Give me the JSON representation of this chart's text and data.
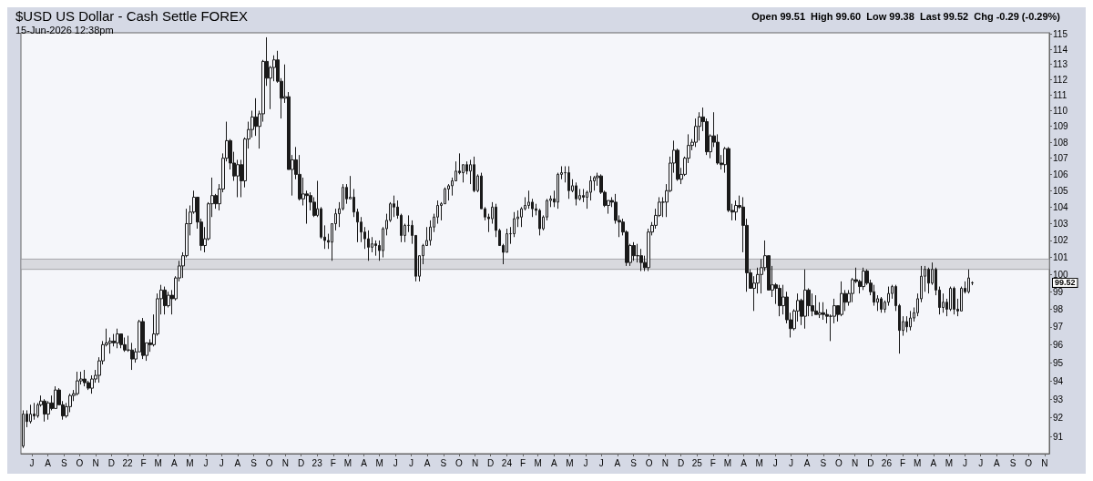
{
  "chart_data": {
    "type": "candlestick",
    "title": "$USD US Dollar - Cash Settle FOREX",
    "subtitle": "15-Jun-2026 12:38pm",
    "annotations": [
      "Open 99.51  High 99.60  Low 99.38  Last 99.52  Chg -0.29 (-0.29%)",
      "99.52"
    ],
    "log": true,
    "color": "#1a1a1a",
    "ylim": [
      90.1,
      115.1
    ],
    "yticks": [
      91,
      92,
      93,
      94,
      95,
      96,
      97,
      98,
      99,
      100,
      101,
      102,
      103,
      104,
      105,
      106,
      107,
      108,
      109,
      110,
      111,
      112,
      113,
      114,
      115
    ],
    "xlim": [
      "2021-06-10",
      "2026-11-10"
    ],
    "xticks": [
      {
        "value": "2021-07-01",
        "label": "J"
      },
      {
        "value": "2021-08-01",
        "label": "A"
      },
      {
        "value": "2021-09-01",
        "label": "S"
      },
      {
        "value": "2021-10-01",
        "label": "O"
      },
      {
        "value": "2021-11-01",
        "label": "N"
      },
      {
        "value": "2021-12-01",
        "label": "D"
      },
      {
        "value": "2022-01-01",
        "label": "22"
      },
      {
        "value": "2022-02-01",
        "label": "F"
      },
      {
        "value": "2022-03-01",
        "label": "M"
      },
      {
        "value": "2022-04-01",
        "label": "A"
      },
      {
        "value": "2022-05-01",
        "label": "M"
      },
      {
        "value": "2022-06-01",
        "label": "J"
      },
      {
        "value": "2022-07-01",
        "label": "J"
      },
      {
        "value": "2022-08-01",
        "label": "A"
      },
      {
        "value": "2022-09-01",
        "label": "S"
      },
      {
        "value": "2022-10-01",
        "label": "O"
      },
      {
        "value": "2022-11-01",
        "label": "N"
      },
      {
        "value": "2022-12-01",
        "label": "D"
      },
      {
        "value": "2023-01-01",
        "label": "23"
      },
      {
        "value": "2023-02-01",
        "label": "F"
      },
      {
        "value": "2023-03-01",
        "label": "M"
      },
      {
        "value": "2023-04-01",
        "label": "A"
      },
      {
        "value": "2023-05-01",
        "label": "M"
      },
      {
        "value": "2023-06-01",
        "label": "J"
      },
      {
        "value": "2023-07-01",
        "label": "J"
      },
      {
        "value": "2023-08-01",
        "label": "A"
      },
      {
        "value": "2023-09-01",
        "label": "S"
      },
      {
        "value": "2023-10-01",
        "label": "O"
      },
      {
        "value": "2023-11-01",
        "label": "N"
      },
      {
        "value": "2023-12-01",
        "label": "D"
      },
      {
        "value": "2024-01-01",
        "label": "24"
      },
      {
        "value": "2024-02-01",
        "label": "F"
      },
      {
        "value": "2024-03-01",
        "label": "M"
      },
      {
        "value": "2024-04-01",
        "label": "A"
      },
      {
        "value": "2024-05-01",
        "label": "M"
      },
      {
        "value": "2024-06-01",
        "label": "J"
      },
      {
        "value": "2024-07-01",
        "label": "J"
      },
      {
        "value": "2024-08-01",
        "label": "A"
      },
      {
        "value": "2024-09-01",
        "label": "S"
      },
      {
        "value": "2024-10-01",
        "label": "O"
      },
      {
        "value": "2024-11-01",
        "label": "N"
      },
      {
        "value": "2024-12-01",
        "label": "D"
      },
      {
        "value": "2025-01-01",
        "label": "25"
      },
      {
        "value": "2025-02-01",
        "label": "F"
      },
      {
        "value": "2025-03-01",
        "label": "M"
      },
      {
        "value": "2025-04-01",
        "label": "A"
      },
      {
        "value": "2025-05-01",
        "label": "M"
      },
      {
        "value": "2025-06-01",
        "label": "J"
      },
      {
        "value": "2025-07-01",
        "label": "J"
      },
      {
        "value": "2025-08-01",
        "label": "A"
      },
      {
        "value": "2025-09-01",
        "label": "S"
      },
      {
        "value": "2025-10-01",
        "label": "O"
      },
      {
        "value": "2025-11-01",
        "label": "N"
      },
      {
        "value": "2025-12-01",
        "label": "D"
      },
      {
        "value": "2026-01-01",
        "label": "26"
      },
      {
        "value": "2026-02-01",
        "label": "F"
      },
      {
        "value": "2026-03-01",
        "label": "M"
      },
      {
        "value": "2026-04-01",
        "label": "A"
      },
      {
        "value": "2026-05-01",
        "label": "M"
      },
      {
        "value": "2026-06-01",
        "label": "J"
      },
      {
        "value": "2026-07-01",
        "label": "J"
      },
      {
        "value": "2026-08-01",
        "label": "A"
      },
      {
        "value": "2026-09-01",
        "label": "S"
      },
      {
        "value": "2026-10-01",
        "label": "O"
      },
      {
        "value": "2026-11-01",
        "label": "N"
      }
    ],
    "bands": [
      {
        "axis": "y",
        "from": 100.3,
        "to": 100.9,
        "color": "#d2d3d8"
      }
    ],
    "x": [
      "2021-06-14",
      "2021-06-21",
      "2021-06-28",
      "2021-07-05",
      "2021-07-12",
      "2021-07-19",
      "2021-07-26",
      "2021-08-02",
      "2021-08-09",
      "2021-08-16",
      "2021-08-23",
      "2021-08-30",
      "2021-09-06",
      "2021-09-13",
      "2021-09-20",
      "2021-09-27",
      "2021-10-04",
      "2021-10-11",
      "2021-10-18",
      "2021-10-25",
      "2021-11-01",
      "2021-11-08",
      "2021-11-15",
      "2021-11-22",
      "2021-11-29",
      "2021-12-06",
      "2021-12-13",
      "2021-12-20",
      "2021-12-27",
      "2022-01-03",
      "2022-01-10",
      "2022-01-17",
      "2022-01-24",
      "2022-01-31",
      "2022-02-07",
      "2022-02-14",
      "2022-02-21",
      "2022-02-28",
      "2022-03-07",
      "2022-03-14",
      "2022-03-21",
      "2022-03-28",
      "2022-04-04",
      "2022-04-11",
      "2022-04-18",
      "2022-04-25",
      "2022-05-02",
      "2022-05-09",
      "2022-05-16",
      "2022-05-23",
      "2022-05-30",
      "2022-06-06",
      "2022-06-13",
      "2022-06-20",
      "2022-06-27",
      "2022-07-04",
      "2022-07-11",
      "2022-07-18",
      "2022-07-25",
      "2022-08-01",
      "2022-08-08",
      "2022-08-15",
      "2022-08-22",
      "2022-08-29",
      "2022-09-05",
      "2022-09-12",
      "2022-09-19",
      "2022-09-26",
      "2022-10-03",
      "2022-10-10",
      "2022-10-17",
      "2022-10-24",
      "2022-10-31",
      "2022-11-07",
      "2022-11-14",
      "2022-11-21",
      "2022-11-28",
      "2022-12-05",
      "2022-12-12",
      "2022-12-19",
      "2022-12-26",
      "2023-01-02",
      "2023-01-09",
      "2023-01-16",
      "2023-01-23",
      "2023-01-30",
      "2023-02-06",
      "2023-02-13",
      "2023-02-20",
      "2023-02-27",
      "2023-03-06",
      "2023-03-13",
      "2023-03-20",
      "2023-03-27",
      "2023-04-03",
      "2023-04-10",
      "2023-04-17",
      "2023-04-24",
      "2023-05-01",
      "2023-05-08",
      "2023-05-15",
      "2023-05-22",
      "2023-05-29",
      "2023-06-05",
      "2023-06-12",
      "2023-06-19",
      "2023-06-26",
      "2023-07-03",
      "2023-07-10",
      "2023-07-17",
      "2023-07-24",
      "2023-07-31",
      "2023-08-07",
      "2023-08-14",
      "2023-08-21",
      "2023-08-28",
      "2023-09-04",
      "2023-09-11",
      "2023-09-18",
      "2023-09-25",
      "2023-10-02",
      "2023-10-09",
      "2023-10-16",
      "2023-10-23",
      "2023-10-30",
      "2023-11-06",
      "2023-11-13",
      "2023-11-20",
      "2023-11-27",
      "2023-12-04",
      "2023-12-11",
      "2023-12-18",
      "2023-12-25",
      "2024-01-01",
      "2024-01-08",
      "2024-01-15",
      "2024-01-22",
      "2024-01-29",
      "2024-02-05",
      "2024-02-12",
      "2024-02-19",
      "2024-02-26",
      "2024-03-04",
      "2024-03-11",
      "2024-03-18",
      "2024-03-25",
      "2024-04-01",
      "2024-04-08",
      "2024-04-15",
      "2024-04-22",
      "2024-04-29",
      "2024-05-06",
      "2024-05-13",
      "2024-05-20",
      "2024-05-27",
      "2024-06-03",
      "2024-06-10",
      "2024-06-17",
      "2024-06-24",
      "2024-07-01",
      "2024-07-08",
      "2024-07-15",
      "2024-07-22",
      "2024-07-29",
      "2024-08-05",
      "2024-08-12",
      "2024-08-19",
      "2024-08-26",
      "2024-09-02",
      "2024-09-09",
      "2024-09-16",
      "2024-09-23",
      "2024-09-30",
      "2024-10-07",
      "2024-10-14",
      "2024-10-21",
      "2024-10-28",
      "2024-11-04",
      "2024-11-11",
      "2024-11-18",
      "2024-11-25",
      "2024-12-02",
      "2024-12-09",
      "2024-12-16",
      "2024-12-23",
      "2024-12-30",
      "2025-01-06",
      "2025-01-13",
      "2025-01-20",
      "2025-01-27",
      "2025-02-03",
      "2025-02-10",
      "2025-02-17",
      "2025-02-24",
      "2025-03-03",
      "2025-03-10",
      "2025-03-17",
      "2025-03-24",
      "2025-03-31",
      "2025-04-07",
      "2025-04-14",
      "2025-04-21",
      "2025-04-28",
      "2025-05-05",
      "2025-05-12",
      "2025-05-19",
      "2025-05-26",
      "2025-06-02",
      "2025-06-09",
      "2025-06-16",
      "2025-06-23",
      "2025-06-30",
      "2025-07-07",
      "2025-07-14",
      "2025-07-21",
      "2025-07-28",
      "2025-08-04",
      "2025-08-11",
      "2025-08-18",
      "2025-08-25",
      "2025-09-01",
      "2025-09-08",
      "2025-09-15",
      "2025-09-22",
      "2025-09-29",
      "2025-10-06",
      "2025-10-13",
      "2025-10-20",
      "2025-10-27",
      "2025-11-03",
      "2025-11-10",
      "2025-11-17",
      "2025-11-24",
      "2025-12-01",
      "2025-12-08",
      "2025-12-15",
      "2025-12-22",
      "2025-12-29",
      "2026-01-05",
      "2026-01-12",
      "2026-01-19",
      "2026-01-26",
      "2026-02-02",
      "2026-02-09",
      "2026-02-16",
      "2026-02-23",
      "2026-03-02",
      "2026-03-09",
      "2026-03-16",
      "2026-03-23",
      "2026-03-30",
      "2026-04-06",
      "2026-04-13",
      "2026-04-20",
      "2026-04-27",
      "2026-05-04",
      "2026-05-11",
      "2026-05-18",
      "2026-05-25",
      "2026-06-01",
      "2026-06-08",
      "2026-06-15"
    ],
    "ohlc": [
      [
        90.5,
        92.4,
        90.4,
        92.2
      ],
      [
        92.2,
        92.4,
        91.5,
        91.8
      ],
      [
        91.8,
        92.7,
        91.7,
        92.2
      ],
      [
        92.2,
        92.8,
        91.9,
        92.1
      ],
      [
        92.1,
        92.8,
        92.0,
        92.7
      ],
      [
        92.7,
        93.2,
        92.6,
        92.9
      ],
      [
        92.9,
        93.0,
        91.8,
        92.2
      ],
      [
        92.2,
        92.9,
        91.9,
        92.8
      ],
      [
        92.8,
        93.2,
        92.4,
        92.5
      ],
      [
        92.5,
        93.7,
        92.5,
        93.5
      ],
      [
        93.5,
        93.6,
        92.7,
        92.7
      ],
      [
        92.7,
        92.9,
        91.9,
        92.1
      ],
      [
        92.1,
        92.8,
        92.0,
        92.6
      ],
      [
        92.6,
        93.3,
        92.3,
        93.2
      ],
      [
        93.2,
        93.5,
        92.9,
        93.3
      ],
      [
        93.3,
        94.5,
        93.2,
        94.0
      ],
      [
        94.0,
        94.5,
        93.8,
        94.1
      ],
      [
        94.1,
        94.6,
        93.7,
        93.9
      ],
      [
        93.9,
        94.0,
        93.5,
        93.6
      ],
      [
        93.6,
        94.3,
        93.3,
        94.1
      ],
      [
        94.1,
        94.6,
        93.9,
        94.3
      ],
      [
        94.3,
        95.3,
        93.9,
        95.1
      ],
      [
        95.1,
        96.2,
        94.9,
        96.0
      ],
      [
        96.0,
        96.9,
        95.9,
        96.1
      ],
      [
        96.1,
        96.4,
        95.5,
        96.2
      ],
      [
        96.2,
        96.6,
        95.9,
        96.1
      ],
      [
        96.1,
        96.9,
        95.8,
        96.6
      ],
      [
        96.6,
        96.6,
        95.8,
        96.0
      ],
      [
        96.0,
        96.4,
        95.6,
        95.7
      ],
      [
        95.7,
        96.5,
        95.6,
        95.7
      ],
      [
        95.7,
        96.1,
        94.6,
        95.2
      ],
      [
        95.2,
        95.8,
        95.0,
        95.6
      ],
      [
        95.6,
        97.4,
        95.6,
        97.3
      ],
      [
        97.3,
        97.5,
        95.2,
        95.4
      ],
      [
        95.4,
        96.1,
        95.1,
        96.1
      ],
      [
        96.1,
        96.3,
        95.6,
        96.0
      ],
      [
        96.0,
        97.7,
        95.9,
        96.6
      ],
      [
        96.6,
        98.9,
        96.5,
        98.6
      ],
      [
        98.6,
        99.4,
        97.7,
        99.1
      ],
      [
        99.1,
        99.3,
        97.7,
        98.2
      ],
      [
        98.2,
        99.0,
        98.1,
        98.8
      ],
      [
        98.8,
        99.1,
        97.7,
        98.6
      ],
      [
        98.6,
        99.9,
        98.5,
        99.8
      ],
      [
        99.8,
        100.8,
        99.6,
        100.5
      ],
      [
        100.5,
        101.3,
        99.8,
        101.1
      ],
      [
        101.1,
        103.9,
        101.0,
        103.0
      ],
      [
        103.0,
        104.1,
        102.3,
        103.7
      ],
      [
        103.7,
        105.0,
        103.6,
        104.6
      ],
      [
        104.6,
        104.6,
        102.7,
        103.1
      ],
      [
        103.1,
        103.3,
        101.4,
        101.7
      ],
      [
        101.7,
        102.8,
        101.3,
        102.1
      ],
      [
        102.1,
        104.3,
        102.0,
        104.2
      ],
      [
        104.2,
        105.8,
        103.4,
        104.7
      ],
      [
        104.7,
        104.8,
        103.9,
        104.2
      ],
      [
        104.2,
        105.4,
        103.8,
        105.1
      ],
      [
        105.1,
        107.3,
        104.9,
        107.0
      ],
      [
        107.0,
        109.3,
        106.8,
        108.1
      ],
      [
        108.1,
        108.2,
        106.3,
        106.7
      ],
      [
        106.7,
        107.4,
        105.6,
        105.9
      ],
      [
        105.9,
        106.9,
        104.6,
        106.6
      ],
      [
        106.6,
        106.9,
        104.6,
        105.6
      ],
      [
        105.6,
        108.3,
        105.2,
        108.2
      ],
      [
        108.2,
        109.3,
        107.6,
        108.8
      ],
      [
        108.8,
        110.0,
        108.3,
        109.6
      ],
      [
        109.6,
        110.8,
        108.4,
        109.0
      ],
      [
        109.0,
        110.0,
        107.6,
        109.8
      ],
      [
        109.8,
        113.3,
        109.3,
        113.2
      ],
      [
        113.2,
        114.8,
        111.6,
        112.1
      ],
      [
        112.1,
        112.9,
        110.1,
        112.8
      ],
      [
        112.8,
        113.6,
        111.9,
        113.3
      ],
      [
        113.3,
        113.9,
        111.8,
        111.9
      ],
      [
        111.9,
        112.1,
        109.5,
        110.8
      ],
      [
        110.8,
        113.0,
        110.5,
        110.9
      ],
      [
        110.9,
        111.2,
        106.3,
        106.3
      ],
      [
        106.3,
        107.2,
        104.7,
        106.9
      ],
      [
        106.9,
        107.7,
        105.7,
        106.0
      ],
      [
        106.0,
        107.2,
        104.4,
        104.5
      ],
      [
        104.5,
        105.8,
        104.1,
        104.8
      ],
      [
        104.8,
        105.0,
        103.0,
        104.7
      ],
      [
        104.7,
        104.9,
        103.8,
        104.3
      ],
      [
        104.3,
        104.6,
        103.4,
        103.5
      ],
      [
        103.5,
        105.6,
        103.4,
        103.9
      ],
      [
        103.9,
        104.0,
        102.1,
        102.2
      ],
      [
        102.2,
        102.9,
        101.5,
        102.0
      ],
      [
        102.0,
        102.4,
        101.5,
        101.9
      ],
      [
        101.9,
        103.0,
        100.8,
        103.0
      ],
      [
        103.0,
        103.9,
        102.6,
        103.6
      ],
      [
        103.6,
        104.3,
        102.8,
        103.9
      ],
      [
        103.9,
        105.4,
        103.8,
        105.2
      ],
      [
        105.2,
        105.4,
        104.2,
        104.5
      ],
      [
        104.5,
        105.9,
        104.5,
        104.6
      ],
      [
        104.6,
        105.1,
        103.4,
        103.7
      ],
      [
        103.7,
        103.9,
        101.9,
        103.1
      ],
      [
        103.1,
        103.4,
        101.9,
        102.5
      ],
      [
        102.5,
        102.8,
        101.5,
        102.1
      ],
      [
        102.1,
        102.6,
        100.8,
        101.6
      ],
      [
        101.6,
        102.2,
        101.3,
        101.8
      ],
      [
        101.8,
        102.0,
        101.1,
        101.7
      ],
      [
        101.7,
        102.0,
        100.8,
        101.4
      ],
      [
        101.4,
        102.8,
        101.0,
        102.7
      ],
      [
        102.7,
        103.6,
        102.3,
        103.2
      ],
      [
        103.2,
        104.3,
        103.1,
        104.2
      ],
      [
        104.2,
        104.7,
        103.4,
        104.0
      ],
      [
        104.0,
        104.4,
        103.3,
        103.5
      ],
      [
        103.5,
        103.6,
        101.9,
        102.3
      ],
      [
        102.3,
        103.0,
        101.9,
        102.9
      ],
      [
        102.9,
        103.5,
        102.5,
        102.9
      ],
      [
        102.9,
        103.2,
        101.8,
        102.3
      ],
      [
        102.3,
        102.3,
        99.6,
        99.9
      ],
      [
        99.9,
        101.1,
        99.6,
        101.1
      ],
      [
        101.1,
        101.8,
        100.6,
        101.7
      ],
      [
        101.7,
        102.8,
        101.7,
        102.0
      ],
      [
        102.0,
        103.2,
        101.7,
        102.8
      ],
      [
        102.8,
        103.6,
        102.5,
        103.4
      ],
      [
        103.4,
        104.4,
        103.0,
        104.1
      ],
      [
        104.1,
        104.3,
        103.2,
        104.2
      ],
      [
        104.2,
        105.2,
        104.2,
        105.1
      ],
      [
        105.1,
        105.4,
        104.4,
        105.3
      ],
      [
        105.3,
        105.8,
        104.7,
        105.6
      ],
      [
        105.6,
        106.8,
        105.6,
        106.2
      ],
      [
        106.2,
        107.3,
        106.0,
        106.1
      ],
      [
        106.1,
        106.6,
        105.5,
        106.6
      ],
      [
        106.6,
        106.8,
        106.0,
        106.2
      ],
      [
        106.2,
        106.9,
        105.4,
        106.6
      ],
      [
        106.6,
        107.1,
        104.9,
        105.0
      ],
      [
        105.0,
        106.0,
        104.9,
        105.9
      ],
      [
        105.9,
        106.1,
        103.9,
        103.9
      ],
      [
        103.9,
        104.0,
        103.2,
        103.4
      ],
      [
        103.4,
        103.6,
        102.5,
        103.3
      ],
      [
        103.3,
        104.3,
        103.0,
        104.0
      ],
      [
        104.0,
        104.2,
        102.2,
        102.6
      ],
      [
        102.6,
        102.7,
        101.7,
        101.7
      ],
      [
        101.7,
        101.8,
        100.6,
        101.3
      ],
      [
        101.3,
        102.7,
        101.3,
        102.4
      ],
      [
        102.4,
        102.8,
        101.8,
        102.4
      ],
      [
        102.4,
        103.7,
        102.2,
        103.3
      ],
      [
        103.3,
        103.8,
        102.8,
        103.4
      ],
      [
        103.4,
        104.0,
        102.8,
        103.9
      ],
      [
        103.9,
        104.6,
        103.8,
        104.1
      ],
      [
        104.1,
        105.0,
        103.9,
        104.3
      ],
      [
        104.3,
        104.5,
        103.4,
        103.9
      ],
      [
        103.9,
        104.2,
        103.5,
        103.8
      ],
      [
        103.8,
        103.9,
        102.3,
        102.7
      ],
      [
        102.7,
        103.5,
        102.6,
        103.4
      ],
      [
        103.4,
        104.5,
        103.2,
        104.4
      ],
      [
        104.4,
        104.7,
        104.0,
        104.5
      ],
      [
        104.5,
        105.0,
        104.0,
        104.3
      ],
      [
        104.3,
        106.1,
        103.9,
        106.0
      ],
      [
        106.0,
        106.5,
        105.7,
        106.1
      ],
      [
        106.1,
        106.5,
        105.5,
        106.1
      ],
      [
        106.1,
        106.5,
        104.5,
        105.0
      ],
      [
        105.0,
        105.7,
        104.9,
        105.3
      ],
      [
        105.3,
        105.5,
        104.1,
        104.5
      ],
      [
        104.5,
        105.1,
        104.4,
        104.7
      ],
      [
        104.7,
        105.1,
        104.3,
        104.6
      ],
      [
        104.6,
        105.0,
        103.9,
        104.9
      ],
      [
        104.9,
        105.9,
        104.4,
        105.6
      ],
      [
        105.6,
        105.9,
        105.0,
        105.8
      ],
      [
        105.8,
        106.1,
        105.3,
        105.9
      ],
      [
        105.9,
        106.0,
        104.8,
        104.9
      ],
      [
        104.9,
        105.0,
        104.0,
        104.1
      ],
      [
        104.1,
        104.4,
        103.6,
        104.4
      ],
      [
        104.4,
        104.6,
        104.0,
        104.3
      ],
      [
        104.3,
        104.8,
        103.0,
        103.2
      ],
      [
        103.2,
        103.5,
        102.2,
        103.1
      ],
      [
        103.1,
        103.3,
        102.3,
        102.5
      ],
      [
        102.5,
        102.6,
        100.5,
        100.7
      ],
      [
        100.7,
        101.8,
        100.5,
        101.7
      ],
      [
        101.7,
        101.9,
        100.8,
        101.1
      ],
      [
        101.1,
        101.8,
        100.7,
        101.1
      ],
      [
        101.1,
        101.5,
        100.2,
        100.7
      ],
      [
        100.7,
        101.1,
        100.2,
        100.4
      ],
      [
        100.4,
        102.7,
        100.2,
        102.5
      ],
      [
        102.5,
        103.1,
        102.3,
        102.9
      ],
      [
        102.9,
        103.9,
        102.7,
        103.5
      ],
      [
        103.5,
        104.6,
        103.4,
        104.3
      ],
      [
        104.3,
        104.6,
        103.4,
        104.3
      ],
      [
        104.3,
        105.4,
        103.4,
        105.0
      ],
      [
        105.0,
        107.1,
        104.9,
        106.7
      ],
      [
        106.7,
        108.1,
        106.1,
        107.5
      ],
      [
        107.5,
        107.6,
        105.6,
        105.7
      ],
      [
        105.7,
        106.4,
        105.4,
        106.0
      ],
      [
        106.0,
        107.1,
        105.9,
        107.0
      ],
      [
        107.0,
        108.5,
        106.7,
        107.8
      ],
      [
        107.8,
        108.2,
        107.5,
        108.0
      ],
      [
        108.0,
        109.5,
        107.7,
        109.0
      ],
      [
        109.0,
        109.9,
        108.1,
        109.6
      ],
      [
        109.6,
        110.2,
        108.7,
        109.3
      ],
      [
        109.3,
        109.5,
        107.2,
        107.4
      ],
      [
        107.4,
        108.5,
        107.0,
        108.4
      ],
      [
        108.4,
        109.9,
        107.7,
        108.0
      ],
      [
        108.0,
        108.5,
        106.6,
        106.7
      ],
      [
        106.7,
        107.2,
        106.3,
        106.6
      ],
      [
        106.6,
        107.7,
        106.1,
        107.6
      ],
      [
        107.6,
        107.7,
        103.7,
        103.8
      ],
      [
        103.8,
        104.2,
        103.2,
        103.7
      ],
      [
        103.7,
        104.4,
        103.2,
        104.1
      ],
      [
        104.1,
        104.7,
        103.9,
        104.0
      ],
      [
        104.0,
        104.6,
        101.3,
        102.9
      ],
      [
        102.9,
        103.3,
        99.0,
        100.1
      ],
      [
        100.1,
        100.3,
        99.2,
        99.2
      ],
      [
        99.2,
        99.9,
        97.9,
        99.5
      ],
      [
        99.5,
        100.4,
        98.9,
        100.0
      ],
      [
        100.0,
        100.9,
        98.9,
        100.4
      ],
      [
        100.4,
        102.0,
        100.2,
        101.1
      ],
      [
        101.1,
        101.1,
        99.1,
        99.1
      ],
      [
        99.1,
        100.5,
        98.7,
        99.4
      ],
      [
        99.4,
        99.5,
        98.3,
        99.2
      ],
      [
        99.2,
        99.4,
        97.6,
        98.2
      ],
      [
        98.2,
        99.4,
        97.7,
        98.7
      ],
      [
        98.7,
        99.0,
        97.2,
        97.4
      ],
      [
        97.4,
        97.8,
        96.4,
        96.9
      ],
      [
        96.9,
        98.0,
        96.8,
        97.9
      ],
      [
        97.9,
        98.9,
        97.3,
        98.5
      ],
      [
        98.5,
        98.6,
        97.1,
        97.6
      ],
      [
        97.6,
        100.3,
        96.9,
        99.1
      ],
      [
        99.1,
        99.2,
        97.6,
        98.2
      ],
      [
        98.2,
        98.9,
        97.6,
        97.9
      ],
      [
        97.9,
        98.8,
        97.7,
        97.7
      ],
      [
        97.7,
        98.4,
        97.5,
        97.8
      ],
      [
        97.8,
        98.4,
        97.4,
        97.7
      ],
      [
        97.7,
        98.0,
        97.2,
        97.6
      ],
      [
        97.6,
        97.7,
        96.2,
        97.6
      ],
      [
        97.6,
        98.6,
        97.2,
        98.2
      ],
      [
        98.2,
        98.2,
        97.3,
        97.7
      ],
      [
        97.7,
        99.6,
        97.6,
        98.9
      ],
      [
        98.9,
        99.1,
        97.9,
        98.4
      ],
      [
        98.4,
        99.1,
        98.2,
        98.9
      ],
      [
        98.9,
        99.8,
        98.4,
        99.7
      ],
      [
        99.7,
        100.4,
        99.5,
        99.6
      ],
      [
        99.6,
        99.7,
        98.9,
        99.3
      ],
      [
        99.3,
        100.4,
        99.1,
        100.2
      ],
      [
        100.2,
        100.3,
        99.4,
        99.5
      ],
      [
        99.5,
        99.7,
        98.8,
        99.0
      ],
      [
        99.0,
        99.4,
        98.2,
        98.4
      ],
      [
        98.4,
        98.8,
        97.9,
        98.6
      ],
      [
        98.6,
        98.7,
        97.8,
        98.0
      ],
      [
        98.0,
        98.5,
        97.8,
        98.4
      ],
      [
        98.4,
        99.3,
        98.2,
        98.9
      ],
      [
        98.9,
        99.4,
        98.6,
        99.3
      ],
      [
        99.3,
        99.4,
        97.9,
        98.2
      ],
      [
        98.2,
        98.3,
        95.5,
        96.8
      ],
      [
        96.8,
        97.6,
        96.5,
        97.3
      ],
      [
        97.3,
        97.6,
        96.7,
        97.0
      ],
      [
        97.0,
        97.9,
        96.8,
        97.5
      ],
      [
        97.5,
        98.1,
        97.3,
        97.8
      ],
      [
        97.8,
        98.9,
        97.6,
        98.6
      ],
      [
        98.6,
        100.5,
        98.4,
        99.9
      ],
      [
        99.9,
        100.5,
        99.0,
        100.3
      ],
      [
        100.3,
        100.4,
        98.9,
        99.5
      ],
      [
        99.5,
        100.7,
        99.4,
        100.3
      ],
      [
        100.3,
        100.4,
        98.8,
        99.1
      ],
      [
        99.1,
        99.3,
        97.7,
        98.1
      ],
      [
        98.1,
        98.9,
        97.8,
        98.4
      ],
      [
        98.4,
        98.6,
        97.6,
        98.0
      ],
      [
        98.0,
        99.3,
        97.9,
        99.2
      ],
      [
        99.2,
        99.3,
        97.7,
        98.0
      ],
      [
        98.0,
        98.6,
        97.6,
        97.9
      ],
      [
        97.9,
        99.3,
        97.9,
        99.2
      ],
      [
        99.2,
        99.6,
        98.9,
        99.0
      ],
      [
        99.0,
        100.3,
        98.9,
        99.8
      ],
      [
        99.51,
        99.6,
        99.38,
        99.52
      ]
    ]
  }
}
